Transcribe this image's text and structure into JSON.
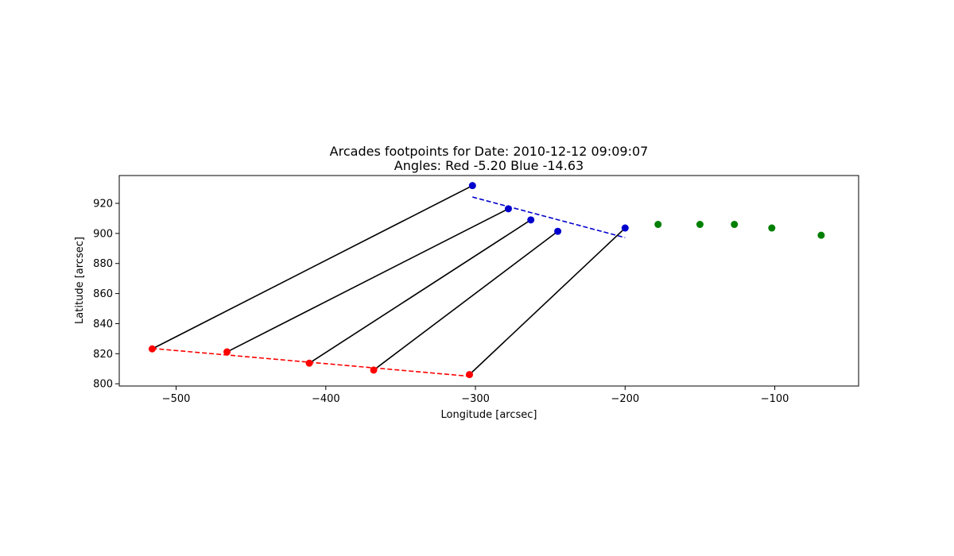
{
  "chart_data": {
    "type": "scatter",
    "title": "Arcades footpoints for Date: 2010-12-12 09:09:07",
    "subtitle": "Angles: Red -5.20 Blue -14.63",
    "xlabel": "Longitude [arcsec]",
    "ylabel": "Latitude [arcsec]",
    "xlim": [
      -538,
      -44
    ],
    "ylim": [
      798.5,
      938.5
    ],
    "x_ticks": [
      -500,
      -400,
      -300,
      -200,
      -100
    ],
    "x_tick_labels": [
      "−500",
      "−400",
      "−300",
      "−200",
      "−100"
    ],
    "y_ticks": [
      800,
      820,
      840,
      860,
      880,
      900,
      920
    ],
    "y_tick_labels": [
      "800",
      "820",
      "840",
      "860",
      "880",
      "900",
      "920"
    ],
    "grid": false,
    "colors": {
      "red": "#ff0000",
      "blue": "#0000cd",
      "green": "#008000",
      "connector": "#000000"
    },
    "series": [
      {
        "color_key": "red",
        "points": [
          {
            "x": -516,
            "y": 823.2
          },
          {
            "x": -466,
            "y": 821.2
          },
          {
            "x": -411,
            "y": 813.7
          },
          {
            "x": -368,
            "y": 809.1
          },
          {
            "x": -304,
            "y": 806.1
          }
        ]
      },
      {
        "color_key": "blue",
        "points": [
          {
            "x": -302,
            "y": 931.8
          },
          {
            "x": -278,
            "y": 916.4
          },
          {
            "x": -263,
            "y": 909.0
          },
          {
            "x": -245,
            "y": 901.4
          },
          {
            "x": -200,
            "y": 903.6
          }
        ]
      },
      {
        "color_key": "green",
        "points": [
          {
            "x": -178,
            "y": 906.0
          },
          {
            "x": -150,
            "y": 906.0
          },
          {
            "x": -127,
            "y": 906.0
          },
          {
            "x": -102,
            "y": 903.6
          },
          {
            "x": -69,
            "y": 898.8
          }
        ]
      }
    ],
    "fit_lines": [
      {
        "color_key": "red",
        "style": "dashed",
        "points": [
          {
            "x": -516,
            "y": 823.5
          },
          {
            "x": -304,
            "y": 805.0
          }
        ]
      },
      {
        "color_key": "blue",
        "style": "dashed",
        "points": [
          {
            "x": -302,
            "y": 924.2
          },
          {
            "x": -200,
            "y": 897.2
          }
        ]
      }
    ],
    "connectors": [
      [
        {
          "x": -516,
          "y": 823.2
        },
        {
          "x": -302,
          "y": 931.8
        }
      ],
      [
        {
          "x": -466,
          "y": 821.2
        },
        {
          "x": -278,
          "y": 916.4
        }
      ],
      [
        {
          "x": -411,
          "y": 813.7
        },
        {
          "x": -263,
          "y": 909.0
        }
      ],
      [
        {
          "x": -368,
          "y": 809.1
        },
        {
          "x": -245,
          "y": 901.4
        }
      ],
      [
        {
          "x": -304,
          "y": 806.1
        },
        {
          "x": -200,
          "y": 903.6
        }
      ]
    ]
  }
}
